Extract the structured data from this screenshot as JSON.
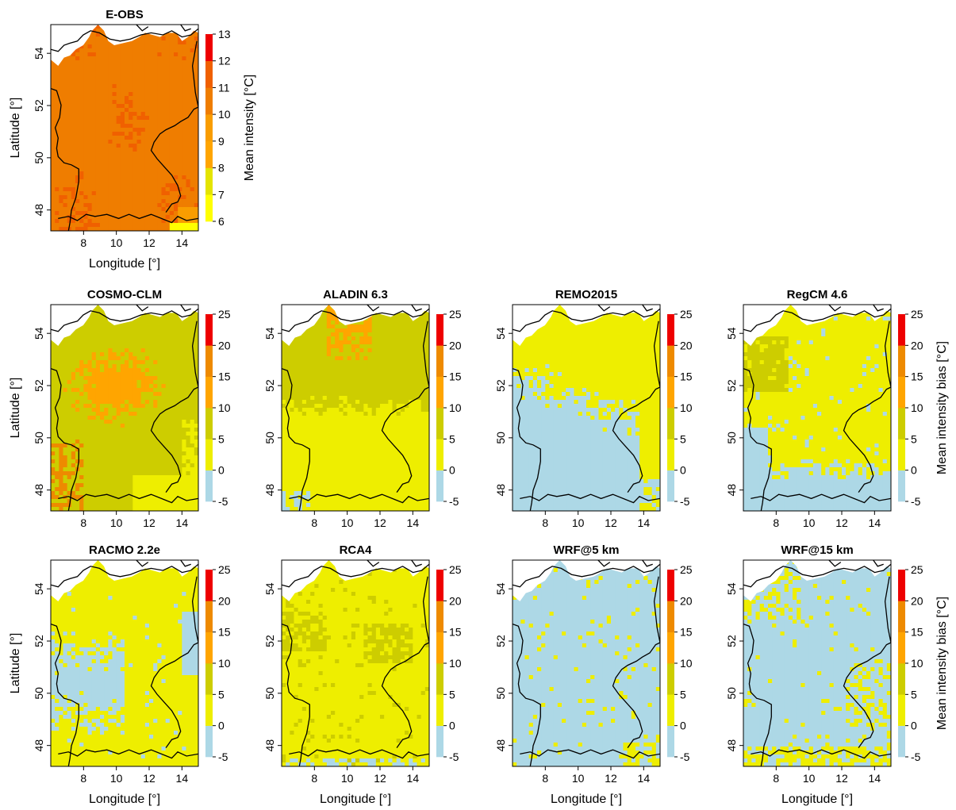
{
  "figure": {
    "axis_labels": {
      "x": "Longitude [°]",
      "y": "Latitude [°]"
    },
    "x_ticks": [
      "8",
      "10",
      "12",
      "14"
    ],
    "y_ticks": [
      "48",
      "50",
      "52",
      "54"
    ],
    "colors": {
      "c_6_7": "#ffff00",
      "c_7_8": "#e4e400",
      "c_8_9": "#ffa500",
      "c_9_10": "#f99d00",
      "c_10_11": "#ef7d00",
      "c_11_12": "#f06000",
      "c_12_13": "#ee0000",
      "b_neg": "#add8e6",
      "b_0_5": "#eeee00",
      "b_5_10": "#cdcd00",
      "b_10_15": "#ffa500",
      "b_15_20": "#ee8a00",
      "b_20_25": "#ee0000",
      "border": "#000000"
    },
    "observation_legend": {
      "title": "Mean intensity [°C]",
      "ticks": [
        "6",
        "7",
        "8",
        "9",
        "10",
        "11",
        "12",
        "13"
      ]
    },
    "bias_legend": {
      "title": "Mean intensity bias [°C]",
      "ticks": [
        "-5",
        "0",
        "5",
        "10",
        "15",
        "20",
        "25"
      ]
    }
  },
  "chart_data": [
    {
      "type": "heatmap",
      "title": "E-OBS",
      "color_scale": "observation",
      "dominant_class": "10–11 °C",
      "pattern": "mostly 10–11 °C with scattered 11–12 °C patches; a few 9–10 °C cells in the southeast"
    },
    {
      "type": "heatmap",
      "title": "COSMO-CLM",
      "color_scale": "bias",
      "dominant_class": "5–10 °C",
      "pattern": "large 10–15 °C area in the center and north; 15–20 °C cells in the far southwest; 0–5 °C in the southeast"
    },
    {
      "type": "heatmap",
      "title": "ALADIN 6.3",
      "color_scale": "bias",
      "dominant_class": "5–10 °C",
      "pattern": "5–10 °C in the north; 0–5 °C in the south; small 10–15 °C patch in the north"
    },
    {
      "type": "heatmap",
      "title": "REMO2015",
      "color_scale": "bias",
      "dominant_class": "0–5 °C",
      "pattern": "0–5 °C in the north and east; below 0 °C over the southwest and south"
    },
    {
      "type": "heatmap",
      "title": "RegCM 4.6",
      "color_scale": "bias",
      "dominant_class": "0–5 °C",
      "pattern": "0–5 °C over most of the domain; 5–10 °C in the northwest; below 0 °C in the far south"
    },
    {
      "type": "heatmap",
      "title": "RACMO 2.2e",
      "color_scale": "bias",
      "dominant_class": "0–5 °C",
      "pattern": "0–5 °C in the north and east; below 0 °C in the southwest"
    },
    {
      "type": "heatmap",
      "title": "RCA4",
      "color_scale": "bias",
      "dominant_class": "0–5 °C",
      "pattern": "0–5 °C over the whole domain; scattered 5–10 °C cells in the west and east"
    },
    {
      "type": "heatmap",
      "title": "WRF@5 km",
      "color_scale": "bias",
      "dominant_class": "below 0 °C",
      "pattern": "below 0 °C almost everywhere; a few 0–5 °C cells in the north and south"
    },
    {
      "type": "heatmap",
      "title": "WRF@15 km",
      "color_scale": "bias",
      "dominant_class": "below 0 °C",
      "pattern": "below 0 °C almost everywhere; 0–5 °C in the north, east and south"
    }
  ]
}
